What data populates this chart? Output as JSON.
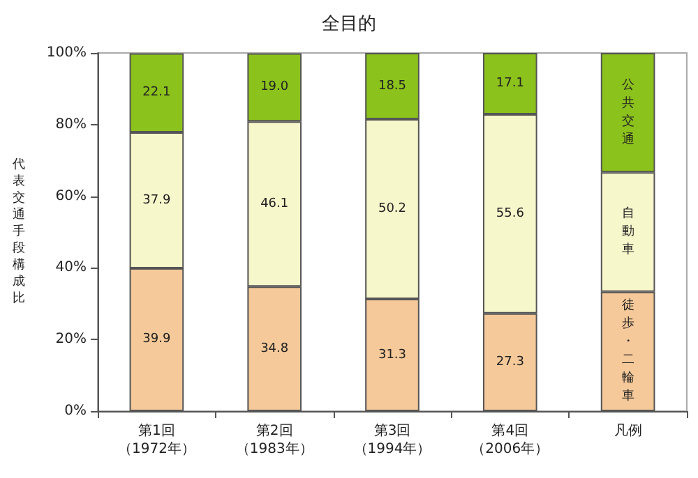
{
  "chart_data": {
    "type": "bar",
    "stacked": true,
    "title": "全目的",
    "ylabel": "代表交通手段構成比",
    "legend_title": "凡例",
    "legend": "right",
    "grid": false,
    "categories": [
      "第1回（1972年）",
      "第2回（1983年）",
      "第3回（1994年）",
      "第4回（2006年）"
    ],
    "series": [
      {
        "name": "徒歩・二輪車",
        "color": "#f5c999",
        "values": [
          39.9,
          34.8,
          31.3,
          27.3
        ],
        "value_labels": [
          "39.9",
          "34.8",
          "31.3",
          "27.3"
        ]
      },
      {
        "name": "自動車",
        "color": "#f7f7cc",
        "values": [
          37.9,
          46.1,
          50.2,
          55.6
        ],
        "value_labels": [
          "37.9",
          "46.1",
          "50.2",
          "55.6"
        ]
      },
      {
        "name": "公共交通",
        "color": "#8cc21c",
        "values": [
          22.1,
          19.0,
          18.5,
          17.1
        ],
        "value_labels": [
          "22.1",
          "19.0",
          "18.5",
          "17.1"
        ]
      }
    ],
    "ylim": [
      0,
      100
    ],
    "yticks": [
      {
        "value": 0,
        "label": "0%"
      },
      {
        "value": 20,
        "label": "20%"
      },
      {
        "value": 40,
        "label": "40%"
      },
      {
        "value": 60,
        "label": "60%"
      },
      {
        "value": 80,
        "label": "80%"
      },
      {
        "value": 100,
        "label": "100%"
      }
    ]
  }
}
